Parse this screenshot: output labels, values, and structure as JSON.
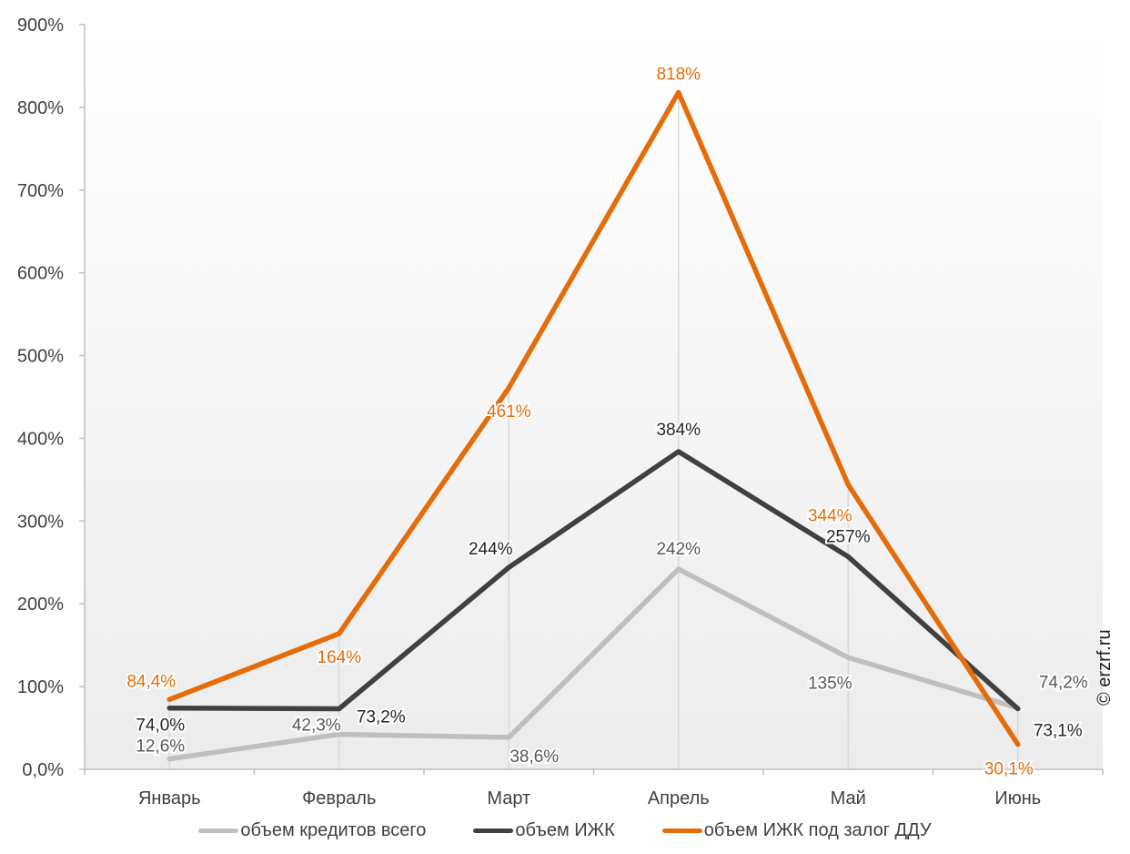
{
  "chart_data": {
    "type": "line",
    "title": "",
    "xlabel": "",
    "ylabel": "",
    "categories": [
      "Январь",
      "Февраль",
      "Март",
      "Апрель",
      "Май",
      "Июнь"
    ],
    "ylim": [
      0,
      900
    ],
    "y_ticks": [
      0,
      100,
      200,
      300,
      400,
      500,
      600,
      700,
      800,
      900
    ],
    "y_tick_labels": [
      "0,0%",
      "100%",
      "200%",
      "300%",
      "400%",
      "500%",
      "600%",
      "700%",
      "800%",
      "900%"
    ],
    "grid": false,
    "legend_position": "bottom",
    "series": [
      {
        "name": "объем кредитов всего",
        "color": "#bfbfbf",
        "label_color": "#595959",
        "values": [
          12.6,
          42.3,
          38.6,
          242,
          135,
          74.2
        ],
        "labels": [
          "12,6%",
          "42,3%",
          "38,6%",
          "242%",
          "135%",
          "74,2%"
        ]
      },
      {
        "name": "объем ИЖК",
        "color": "#404040",
        "label_color": "#262626",
        "values": [
          74.0,
          73.2,
          244,
          384,
          257,
          73.1
        ],
        "labels": [
          "74,0%",
          "73,2%",
          "244%",
          "384%",
          "257%",
          "73,1%"
        ]
      },
      {
        "name": "объем ИЖК под залог ДДУ",
        "color": "#e46c0a",
        "label_color": "#e46c0a",
        "values": [
          84.4,
          164,
          461,
          818,
          344,
          30.1
        ],
        "labels": [
          "84,4%",
          "164%",
          "461%",
          "818%",
          "344%",
          "30,1%"
        ]
      }
    ]
  },
  "copyright": "© erzrf.ru"
}
